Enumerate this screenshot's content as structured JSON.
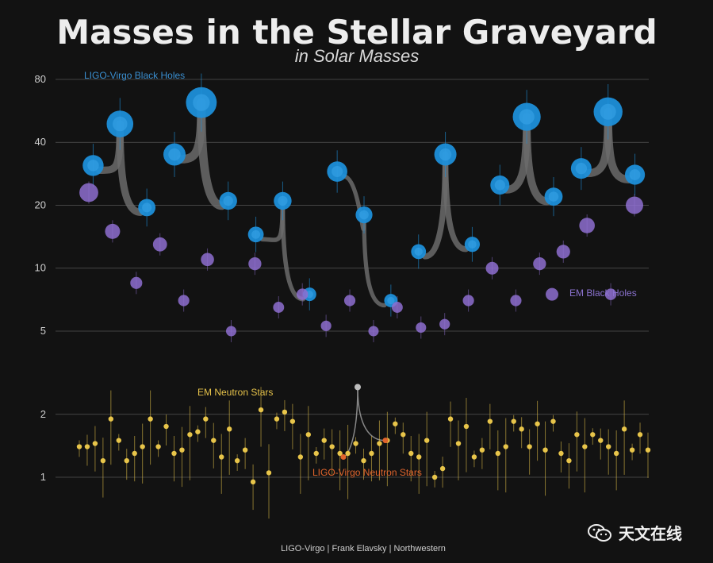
{
  "title": "Masses in the Stellar Graveyard",
  "subtitle": "in Solar Masses",
  "credit": "LIGO-Virgo | Frank Elavsky | Northwestern",
  "watermark": "天文在线",
  "colors": {
    "background": "#121212",
    "ligo_bh": "#1d8fd9",
    "em_bh": "#8e6fd0",
    "em_ns": "#e8c54a",
    "ligo_ns": "#e0642c",
    "merger_arc": "#6b6b6b",
    "grid": "#555555"
  },
  "chart_data": {
    "type": "scatter",
    "yscale": "log",
    "yticks": [
      1,
      2,
      5,
      10,
      20,
      40,
      80
    ],
    "ylim": [
      1,
      80
    ],
    "grid": true,
    "labels": {
      "ligo_bh": "LIGO-Virgo Black Holes",
      "em_bh": "EM Black Holes",
      "em_ns": "EM Neutron Stars",
      "ligo_ns": "LIGO-Virgo Neutron Stars"
    },
    "ligo_mergers": [
      {
        "m1": 31,
        "m2": 19.5,
        "final": 49
      },
      {
        "m1": 35,
        "m2": 21,
        "final": 62
      },
      {
        "m1": 14.5,
        "m2": 7.5,
        "final": 21
      },
      {
        "m1": 29,
        "m2": 7,
        "final": 18
      },
      {
        "m1": 12,
        "m2": 13,
        "final": 35
      },
      {
        "m1": 25,
        "m2": 22,
        "final": 53
      },
      {
        "m1": 30,
        "m2": 28,
        "final": 56
      }
    ],
    "em_black_holes": [
      23,
      15,
      8.5,
      13,
      7,
      11,
      5,
      10.5,
      6.5,
      7.5,
      5.3,
      7,
      5,
      6.5,
      5.2,
      5.4,
      7,
      10,
      7,
      10.5,
      12,
      16,
      7.5,
      20
    ],
    "em_neutron_stars": [
      1.4,
      1.4,
      1.45,
      1.2,
      1.9,
      1.5,
      1.2,
      1.3,
      1.4,
      1.9,
      1.4,
      1.75,
      1.3,
      1.35,
      1.6,
      1.65,
      1.9,
      1.5,
      1.25,
      1.7,
      1.2,
      1.35,
      0.95,
      2.1,
      1.05,
      1.9,
      2.05,
      1.85,
      1.25,
      1.6,
      1.3,
      1.5,
      1.4,
      1.3,
      1.3,
      1.45,
      1.2,
      1.3,
      1.45,
      1.5,
      1.8,
      1.6,
      1.3,
      1.25,
      1.5,
      1.0,
      1.1,
      1.9,
      1.45,
      1.75,
      1.25,
      1.35,
      1.85,
      1.3,
      1.4,
      1.85,
      1.7,
      1.4,
      1.8,
      1.35,
      1.85,
      1.3,
      1.2,
      1.6,
      1.4,
      1.6,
      1.5,
      1.4,
      1.3,
      1.7,
      1.35,
      1.6,
      1.35
    ],
    "ligo_neutron_stars": {
      "m1": 1.5,
      "m2": 1.25,
      "final": 2.7
    }
  }
}
